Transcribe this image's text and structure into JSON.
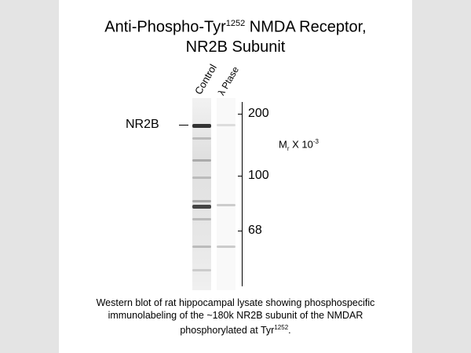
{
  "title": {
    "line1_pre": "Anti-Phospho-Tyr",
    "line1_sup": "1252",
    "line1_post": " NMDA Receptor,",
    "line2": "NR2B Subunit"
  },
  "lanes": [
    "Control",
    "λ Ptase"
  ],
  "band_label": "NR2B",
  "axis": {
    "unit_pre": "M",
    "unit_sub": "r",
    "unit_post": " X 10",
    "unit_sup": "-3",
    "markers": [
      "200",
      "100",
      "68"
    ]
  },
  "caption": {
    "line1": "Western blot of rat hippocampal lysate showing phosphospecific",
    "line2": "immunolabeling of the ~180k NR2B subunit of the NMDAR",
    "line3_pre": "phosphorylated at Tyr",
    "line3_sup": "1252",
    "line3_post": "."
  },
  "colors": {
    "background": "#e4e4e4",
    "panel": "#ffffff"
  }
}
